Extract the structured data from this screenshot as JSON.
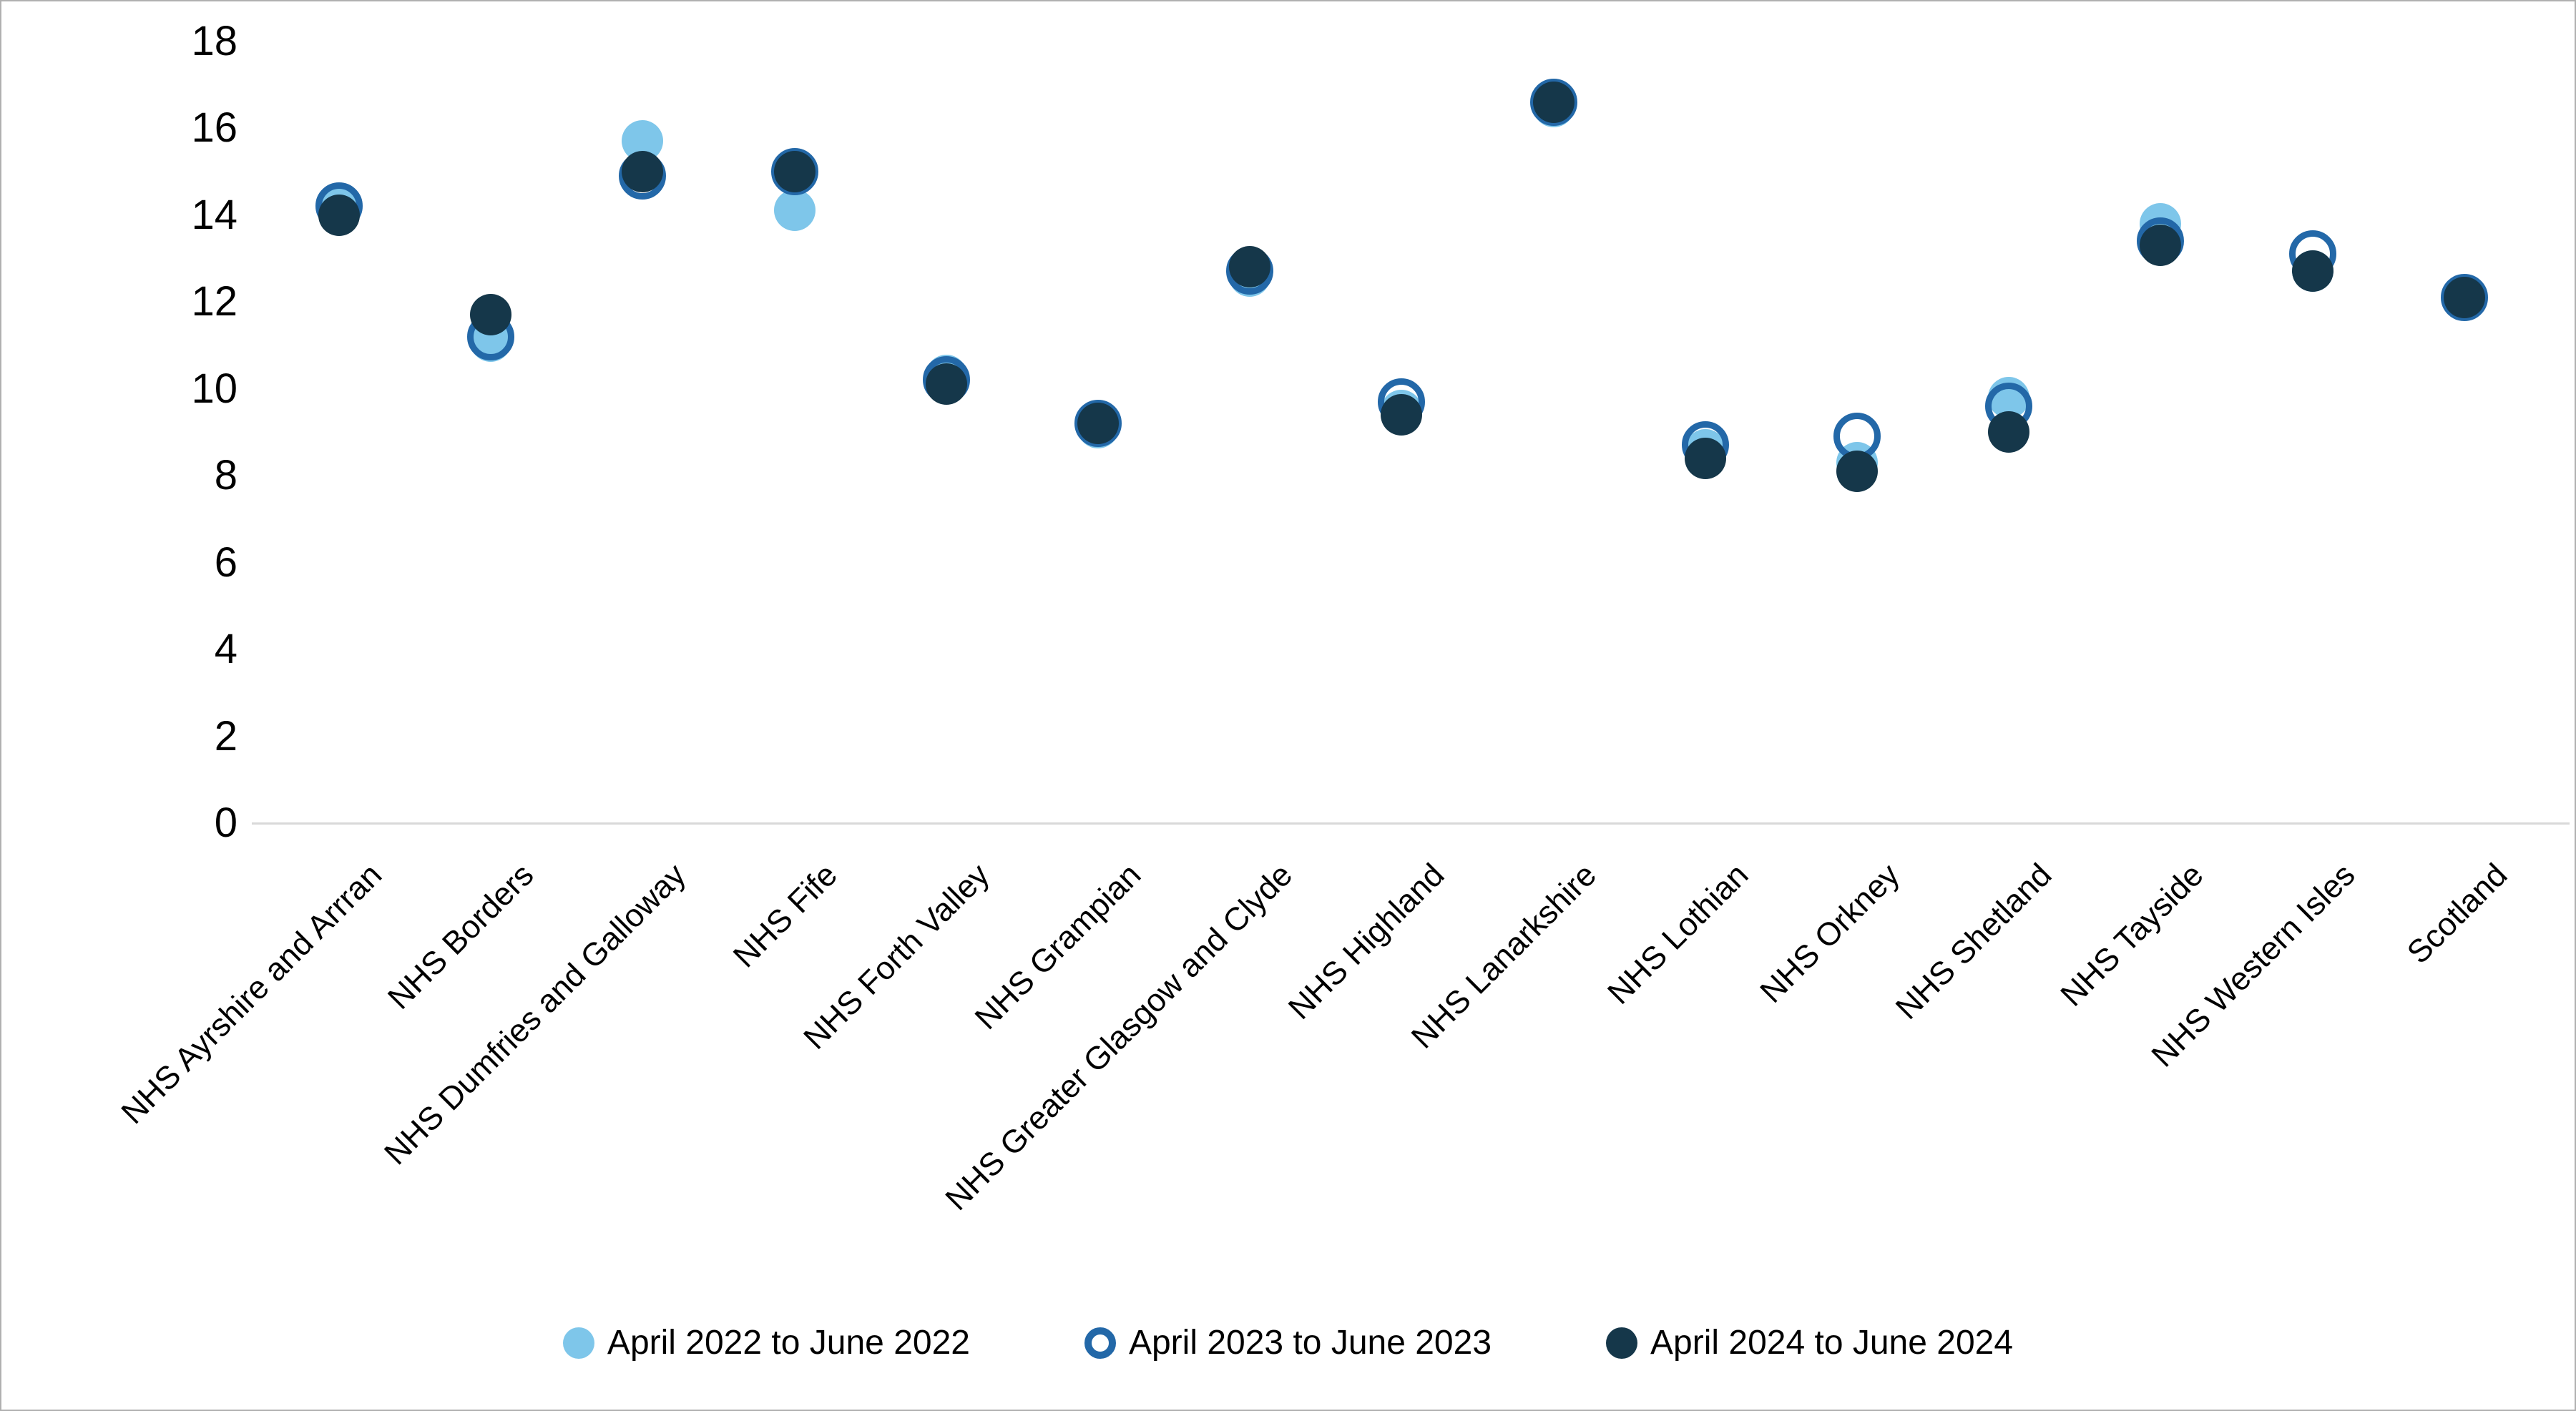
{
  "chart_data": {
    "type": "scatter",
    "title": "",
    "xlabel": "",
    "ylabel": "",
    "ylim": [
      0,
      18
    ],
    "yticks": [
      0,
      2,
      4,
      6,
      8,
      10,
      12,
      14,
      16,
      18
    ],
    "grid": false,
    "legend_position": "bottom",
    "categories": [
      "NHS Ayrshire and Arrran",
      "NHS Borders",
      "NHS Dumfries and Galloway",
      "NHS Fife",
      "NHS Forth Valley",
      "NHS Grampian",
      "NHS Greater Glasgow and Clyde",
      "NHS Highland",
      "NHS Lanarkshire",
      "NHS Lothian",
      "NHS Orkney",
      "NHS Shetland",
      "NHS Tayside",
      "NHS Western Isles",
      "Scotland"
    ],
    "series": [
      {
        "name": "April 2022 to June 2022",
        "marker": "filled-circle",
        "color": "#7ec6ea",
        "values": [
          14.2,
          11.1,
          15.7,
          14.1,
          10.3,
          9.1,
          12.6,
          9.5,
          16.5,
          8.6,
          8.3,
          9.8,
          13.8,
          12.7,
          12.1
        ]
      },
      {
        "name": "April 2023 to June 2023",
        "marker": "open-circle",
        "color": "#2368a8",
        "values": [
          14.2,
          11.2,
          14.9,
          15.0,
          10.2,
          9.2,
          12.7,
          9.7,
          16.6,
          8.7,
          8.9,
          9.6,
          13.4,
          13.1,
          12.1
        ]
      },
      {
        "name": "April 2024 to June 2024",
        "marker": "filled-circle",
        "color": "#15374a",
        "values": [
          14.0,
          11.7,
          15.0,
          15.0,
          10.1,
          9.2,
          12.8,
          9.4,
          16.6,
          8.4,
          8.1,
          9.0,
          13.3,
          12.7,
          12.1
        ]
      }
    ]
  },
  "colors": {
    "series_2022": "#7ec6ea",
    "series_2023": "#2368a8",
    "series_2024": "#15374a",
    "axis_line": "#d9d9d9",
    "text": "#000000"
  }
}
